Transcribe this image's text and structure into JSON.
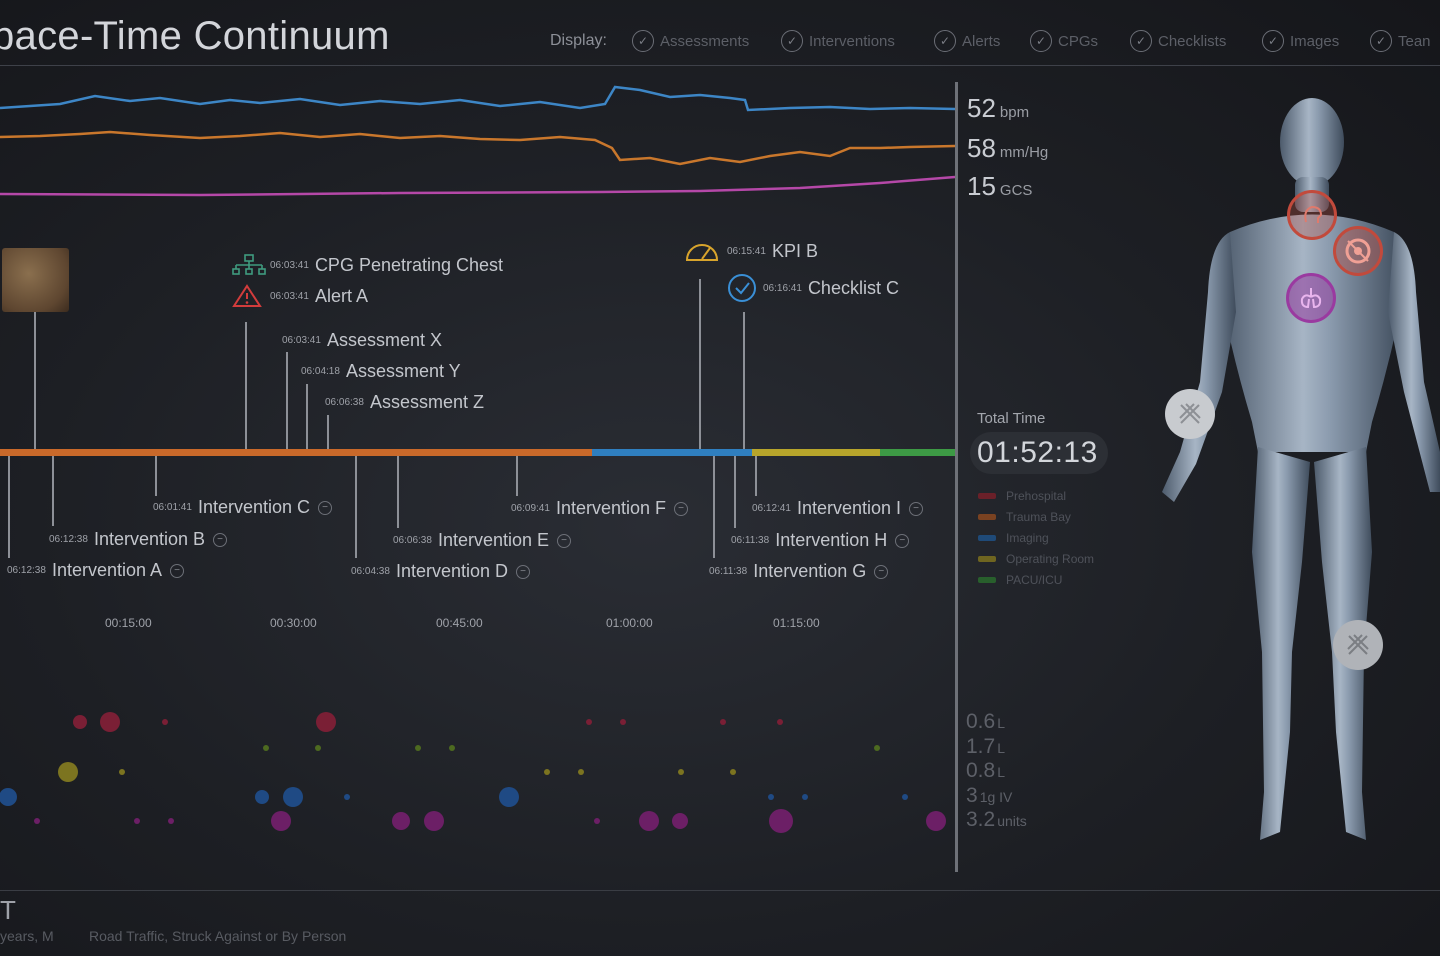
{
  "header": {
    "title": "pace-Time Continuum",
    "display_label": "Display:",
    "toggles": [
      "Assessments",
      "Interventions",
      "Alerts",
      "CPGs",
      "Checklists",
      "Images",
      "Tean"
    ]
  },
  "vitals": [
    {
      "value": "52",
      "unit": "bpm"
    },
    {
      "value": "58",
      "unit": "mm/Hg"
    },
    {
      "value": "15",
      "unit": "GCS"
    }
  ],
  "colors": {
    "heart_rate": "#3d86c6",
    "blood_pressure": "#c9772c",
    "gcs": "#b548a8",
    "prehospital": "#b2313f",
    "trauma_bay": "#c9692a",
    "imaging": "#2f7fc0",
    "operating_room": "#b7a52b",
    "pacu_icu": "#3d9a45"
  },
  "upper_events": [
    {
      "name": "cpg-penetrating-chest",
      "time": "06:03:41",
      "label": "CPG Penetrating Chest",
      "icon": "cpg-flowchart-icon"
    },
    {
      "name": "alert-a",
      "time": "06:03:41",
      "label": "Alert A",
      "icon": "alert-triangle-icon"
    },
    {
      "name": "assessment-x",
      "time": "06:03:41",
      "label": "Assessment X"
    },
    {
      "name": "assessment-y",
      "time": "06:04:18",
      "label": "Assessment Y"
    },
    {
      "name": "assessment-z",
      "time": "06:06:38",
      "label": "Assessment Z"
    },
    {
      "name": "kpi-b",
      "time": "06:15:41",
      "label": "KPI B",
      "icon": "gauge-icon"
    },
    {
      "name": "checklist-c",
      "time": "06:16:41",
      "label": "Checklist C",
      "icon": "check-circle-icon"
    }
  ],
  "interventions": [
    {
      "time": "06:12:38",
      "label": "Intervention A"
    },
    {
      "time": "06:12:38",
      "label": "Intervention B"
    },
    {
      "time": "06:01:41",
      "label": "Intervention C"
    },
    {
      "time": "06:04:38",
      "label": "Intervention D"
    },
    {
      "time": "06:06:38",
      "label": "Intervention E"
    },
    {
      "time": "06:09:41",
      "label": "Intervention F"
    },
    {
      "time": "06:11:38",
      "label": "Intervention G"
    },
    {
      "time": "06:11:38",
      "label": "Intervention H"
    },
    {
      "time": "06:12:41",
      "label": "Intervention I"
    }
  ],
  "time_ticks": [
    "00:15:00",
    "00:30:00",
    "00:45:00",
    "01:00:00",
    "01:15:00"
  ],
  "total_time": {
    "label": "Total Time",
    "value": "01:52:13"
  },
  "phases": [
    "Prehospital",
    "Trauma Bay",
    "Imaging",
    "Operating Room",
    "PACU/ICU"
  ],
  "fluids": [
    {
      "value": "0.6",
      "unit": "L"
    },
    {
      "value": "1.7",
      "unit": "L"
    },
    {
      "value": "0.8",
      "unit": "L"
    },
    {
      "value": "3",
      "unit": "1g IV"
    },
    {
      "value": "3.2",
      "unit": "units"
    }
  ],
  "patient": {
    "id": "T",
    "age_sex": "years, M",
    "mechanism": "Road Traffic, Struck Against or By Person"
  },
  "body_markers": [
    "head-injury-icon",
    "chest-target-icon",
    "lungs-icon",
    "wrist-injury-icon",
    "knee-injury-icon"
  ]
}
